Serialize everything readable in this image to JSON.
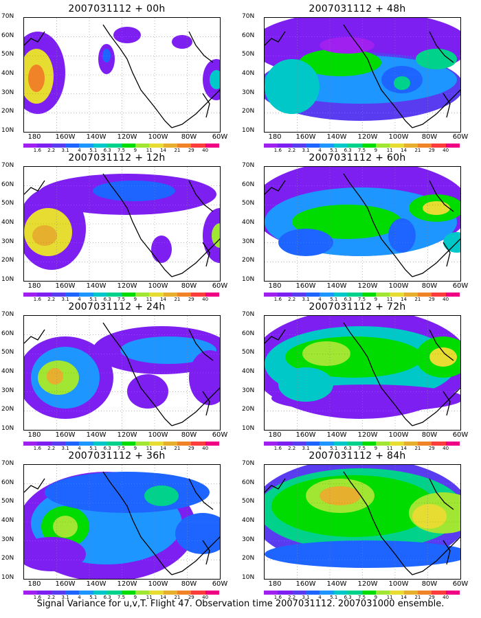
{
  "panels": [
    {
      "title": "2007031112 + 00h"
    },
    {
      "title": "2007031112 + 48h"
    },
    {
      "title": "2007031112 + 12h"
    },
    {
      "title": "2007031112 + 60h"
    },
    {
      "title": "2007031112 + 24h"
    },
    {
      "title": "2007031112 + 72h"
    },
    {
      "title": "2007031112 + 36h"
    },
    {
      "title": "2007031112 + 84h"
    }
  ],
  "lat_labels": [
    "70N",
    "60N",
    "50N",
    "40N",
    "30N",
    "20N",
    "10N"
  ],
  "lon_labels": [
    "180",
    "160W",
    "140W",
    "120W",
    "100W",
    "80W",
    "60W"
  ],
  "colorbar": {
    "labels": [
      "1.6",
      "2.2",
      "3.1",
      "4",
      "5.1",
      "6.3",
      "7.5",
      "9",
      "11",
      "14",
      "21",
      "29",
      "40"
    ],
    "colors": [
      "#a020f0",
      "#7c1ff0",
      "#5a3cf0",
      "#1e64ff",
      "#1e96ff",
      "#00c8c8",
      "#00d28c",
      "#00dc00",
      "#a0e632",
      "#e6dc32",
      "#e6af2d",
      "#f08228",
      "#fa3c3c",
      "#f00082"
    ]
  },
  "caption": "Signal Variance for u,v,T. Flight 47. Observation time 2007031112. 2007031000 ensemble."
}
